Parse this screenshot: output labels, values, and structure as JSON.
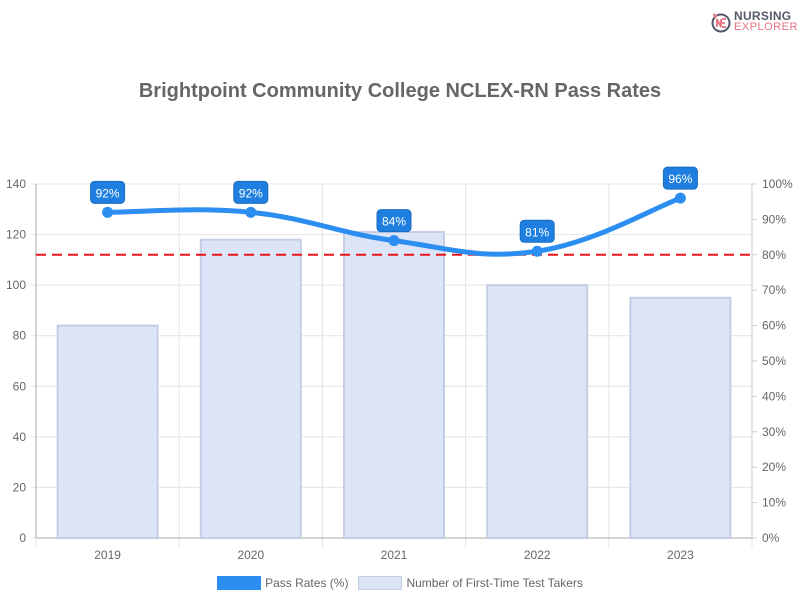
{
  "logo": {
    "line1": "NURSING",
    "line2": "EXPLORER"
  },
  "chart_data": {
    "type": "bar",
    "title": "Brightpoint Community College NCLEX-RN Pass Rates",
    "categories": [
      "2019",
      "2020",
      "2021",
      "2022",
      "2023"
    ],
    "series": [
      {
        "name": "Pass Rates (%)",
        "type": "line",
        "axis": "right",
        "values": [
          92,
          92,
          84,
          81,
          96
        ],
        "color": "#2b8ef0"
      },
      {
        "name": "Number of First-Time Test Takers",
        "type": "bar",
        "axis": "left",
        "values": [
          84,
          118,
          121,
          100,
          95
        ],
        "color": "#dce4f7",
        "border": "#c5cde3"
      }
    ],
    "left_axis": {
      "ylim": [
        0,
        140
      ],
      "ticks": [
        "0",
        "20",
        "40",
        "60",
        "80",
        "100",
        "120",
        "140"
      ]
    },
    "right_axis": {
      "ylim": [
        0,
        100
      ],
      "ticks": [
        "0%",
        "10%",
        "20%",
        "30%",
        "40%",
        "50%",
        "60%",
        "70%",
        "80%",
        "90%",
        "100%"
      ]
    },
    "data_labels": [
      "92%",
      "92%",
      "84%",
      "81%",
      "96%"
    ],
    "reference_line": {
      "value": 80,
      "axis": "right",
      "color": "#e8141b",
      "style": "dashed"
    },
    "grid": true,
    "legend_position": "bottom"
  }
}
